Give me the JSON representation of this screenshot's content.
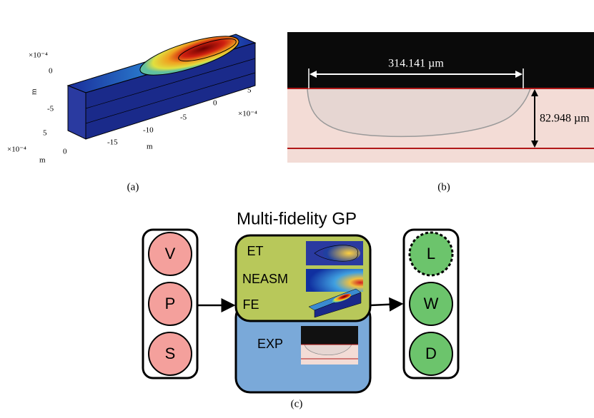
{
  "panel_a": {
    "caption": "(a)",
    "labels": [
      "×10⁻⁴",
      "0",
      "-5",
      "m",
      "5",
      "0",
      "×10⁻⁴",
      "m",
      "-15",
      "-10",
      "-5",
      "0",
      "5",
      "m",
      "×10⁻⁴"
    ]
  },
  "panel_b": {
    "caption": "(b)",
    "width_label": "314.141 µm",
    "depth_label": "82.948 µm"
  },
  "panel_c": {
    "caption": "(c)",
    "title": "Multi-fidelity GP",
    "inputs": [
      "V",
      "P",
      "S"
    ],
    "models": [
      "ET",
      "NEASM",
      "FE",
      "EXP"
    ],
    "outputs": [
      "L",
      "W",
      "D"
    ]
  }
}
